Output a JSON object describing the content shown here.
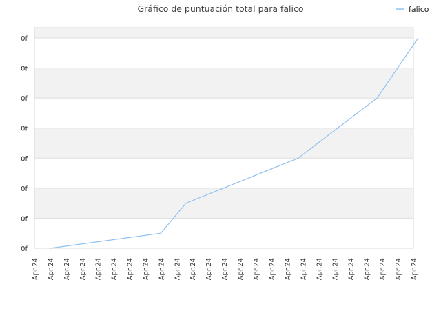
{
  "chart_data": {
    "type": "line",
    "title": "Gráfico de puntuación total para falico",
    "xlabel": "",
    "ylabel": "",
    "legend_position": "top-right",
    "grid": true,
    "y_tick_labels": [
      "0f",
      "0f",
      "0f",
      "0f",
      "0f",
      "0f",
      "0f",
      "0f"
    ],
    "x_tick_labels": [
      "Apr.24",
      "Apr.24",
      "Apr.24",
      "Apr.24",
      "Apr.24",
      "Apr.24",
      "Apr.24",
      "Apr.24",
      "Apr.24",
      "Apr.24",
      "Apr.24",
      "Apr.24",
      "Apr.24",
      "Apr.24",
      "Apr.24",
      "Apr.24",
      "Apr.24",
      "Apr.24",
      "Apr.24",
      "Apr.24",
      "Apr.24",
      "Apr.24",
      "Apr.24",
      "Apr.24",
      "Apr.24"
    ],
    "ylim": [
      0,
      7
    ],
    "series": [
      {
        "name": "falico",
        "color": "#90c0f0",
        "x": [
          1,
          8,
          9.6,
          16.7,
          21.7,
          24.3
        ],
        "y": [
          0,
          0.5,
          1.5,
          3.0,
          5.0,
          7.0
        ]
      }
    ]
  },
  "colors": {
    "band": "#f2f2f2",
    "grid": "#dddddd",
    "axis": "#cccccc"
  }
}
